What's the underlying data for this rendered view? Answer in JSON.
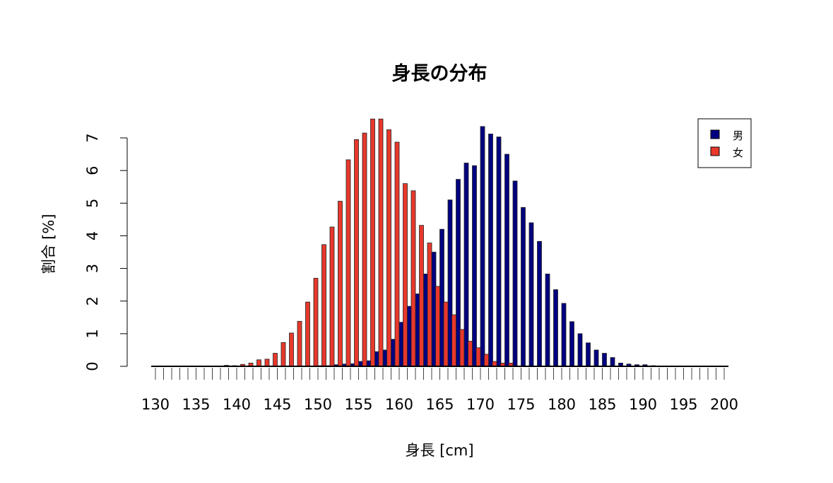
{
  "chart_data": {
    "type": "bar",
    "title": "身長の分布",
    "xlabel": "身長 [cm]",
    "ylabel": "割合 [%]",
    "xlim": [
      130,
      200
    ],
    "ylim": [
      0,
      7.6
    ],
    "x_ticks": [
      "130",
      "135",
      "140",
      "145",
      "150",
      "155",
      "160",
      "165",
      "170",
      "175",
      "180",
      "185",
      "190",
      "195",
      "200"
    ],
    "y_ticks": [
      "0",
      "1",
      "2",
      "3",
      "4",
      "5",
      "6",
      "7"
    ],
    "grid": false,
    "legend_position": "top-right",
    "x": [
      130,
      131,
      132,
      133,
      134,
      135,
      136,
      137,
      138,
      139,
      140,
      141,
      142,
      143,
      144,
      145,
      146,
      147,
      148,
      149,
      150,
      151,
      152,
      153,
      154,
      155,
      156,
      157,
      158,
      159,
      160,
      161,
      162,
      163,
      164,
      165,
      166,
      167,
      168,
      169,
      170,
      171,
      172,
      173,
      174,
      175,
      176,
      177,
      178,
      179,
      180,
      181,
      182,
      183,
      184,
      185,
      186,
      187,
      188,
      189,
      190,
      191,
      192,
      193,
      194,
      195,
      196,
      197,
      198,
      199,
      200
    ],
    "series": [
      {
        "name": "男",
        "color": "#000080",
        "values": [
          0,
          0,
          0,
          0,
          0,
          0,
          0,
          0,
          0,
          0,
          0,
          0,
          0,
          0,
          0,
          0,
          0,
          0,
          0,
          0,
          0.02,
          0.02,
          0.05,
          0.07,
          0.08,
          0.15,
          0.17,
          0.45,
          0.5,
          0.83,
          1.35,
          1.84,
          2.22,
          2.83,
          3.5,
          4.2,
          5.1,
          5.73,
          6.23,
          6.15,
          7.35,
          7.12,
          7.03,
          6.5,
          5.68,
          4.87,
          4.4,
          3.83,
          2.83,
          2.35,
          1.93,
          1.37,
          1.0,
          0.72,
          0.5,
          0.4,
          0.27,
          0.1,
          0.07,
          0.05,
          0.05,
          0.02,
          0,
          0,
          0,
          0,
          0,
          0,
          0,
          0,
          0
        ]
      },
      {
        "name": "女",
        "color": "#E8382C",
        "values": [
          0,
          0,
          0,
          0,
          0,
          0.01,
          0,
          0,
          0,
          0.03,
          0.02,
          0.06,
          0.1,
          0.2,
          0.22,
          0.4,
          0.73,
          1.02,
          1.38,
          1.97,
          2.7,
          3.73,
          4.27,
          5.06,
          6.33,
          6.95,
          7.15,
          7.58,
          7.58,
          7.25,
          6.87,
          5.6,
          5.38,
          4.32,
          3.78,
          2.45,
          1.97,
          1.58,
          1.13,
          0.77,
          0.57,
          0.37,
          0.15,
          0.1,
          0.1,
          0.01,
          0,
          0,
          0,
          0,
          0,
          0,
          0,
          0,
          0,
          0,
          0,
          0,
          0,
          0,
          0,
          0,
          0,
          0,
          0,
          0,
          0,
          0,
          0,
          0,
          0
        ]
      }
    ]
  }
}
